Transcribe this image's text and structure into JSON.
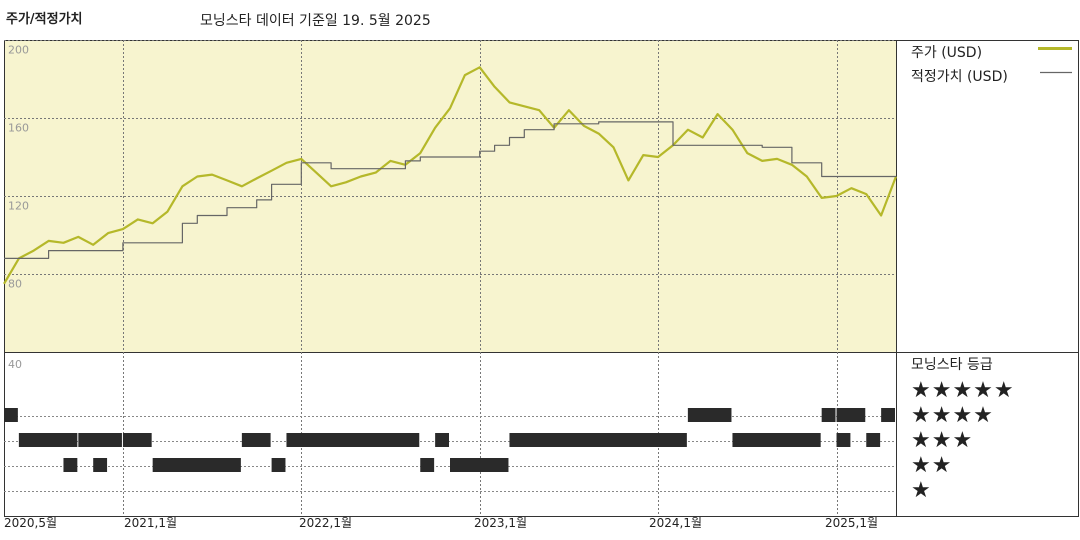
{
  "header": {
    "section_title": "주가/적정가치",
    "source_note": "모닝스타 데이터 기준일 19. 5월 2025"
  },
  "legend": {
    "price_label": "주가 (USD)",
    "fair_value_label": "적정가치 (USD)",
    "rating_title": "모닝스타 등급",
    "price_color": "#b5b82a",
    "fair_value_color": "#666666"
  },
  "rating_rows": [
    "★★★★★",
    "★★★★",
    "★★★",
    "★★",
    "★"
  ],
  "chart_data": {
    "type": "line",
    "x_tick_labels": [
      "2020,5월",
      "2021,1월",
      "2022,1월",
      "2023,1월",
      "2024,1월",
      "2025,1월"
    ],
    "x_ticks": [
      "2020-05",
      "2021-01",
      "2022-01",
      "2023-01",
      "2024-01",
      "2025-01"
    ],
    "x_range": [
      "2020-05",
      "2025-05"
    ],
    "y_tick_labels": [
      "200",
      "160",
      "120",
      "80",
      "40"
    ],
    "ylim": [
      40,
      200
    ],
    "series": [
      {
        "name": "주가 (USD)",
        "color": "#b5b82a",
        "points": [
          [
            "2020-05",
            75
          ],
          [
            "2020-06",
            88
          ],
          [
            "2020-07",
            92
          ],
          [
            "2020-08",
            97
          ],
          [
            "2020-09",
            96
          ],
          [
            "2020-10",
            99
          ],
          [
            "2020-11",
            95
          ],
          [
            "2020-12",
            101
          ],
          [
            "2021-01",
            103
          ],
          [
            "2021-02",
            108
          ],
          [
            "2021-03",
            106
          ],
          [
            "2021-04",
            112
          ],
          [
            "2021-05",
            125
          ],
          [
            "2021-06",
            130
          ],
          [
            "2021-07",
            131
          ],
          [
            "2021-08",
            128
          ],
          [
            "2021-09",
            125
          ],
          [
            "2021-10",
            129
          ],
          [
            "2021-11",
            133
          ],
          [
            "2021-12",
            137
          ],
          [
            "2022-01",
            139
          ],
          [
            "2022-02",
            132
          ],
          [
            "2022-03",
            125
          ],
          [
            "2022-04",
            127
          ],
          [
            "2022-05",
            130
          ],
          [
            "2022-06",
            132
          ],
          [
            "2022-07",
            138
          ],
          [
            "2022-08",
            136
          ],
          [
            "2022-09",
            142
          ],
          [
            "2022-10",
            155
          ],
          [
            "2022-11",
            165
          ],
          [
            "2022-12",
            182
          ],
          [
            "2023-01",
            186
          ],
          [
            "2023-02",
            176
          ],
          [
            "2023-03",
            168
          ],
          [
            "2023-04",
            166
          ],
          [
            "2023-05",
            164
          ],
          [
            "2023-06",
            155
          ],
          [
            "2023-07",
            164
          ],
          [
            "2023-08",
            156
          ],
          [
            "2023-09",
            152
          ],
          [
            "2023-10",
            145
          ],
          [
            "2023-11",
            128
          ],
          [
            "2023-12",
            141
          ],
          [
            "2024-01",
            140
          ],
          [
            "2024-02",
            146
          ],
          [
            "2024-03",
            154
          ],
          [
            "2024-04",
            150
          ],
          [
            "2024-05",
            162
          ],
          [
            "2024-06",
            154
          ],
          [
            "2024-07",
            142
          ],
          [
            "2024-08",
            138
          ],
          [
            "2024-09",
            139
          ],
          [
            "2024-10",
            136
          ],
          [
            "2024-11",
            130
          ],
          [
            "2024-12",
            119
          ],
          [
            "2025-01",
            120
          ],
          [
            "2025-02",
            124
          ],
          [
            "2025-03",
            121
          ],
          [
            "2025-04",
            110
          ],
          [
            "2025-05",
            130
          ]
        ]
      },
      {
        "name": "적정가치 (USD)",
        "color": "#666666",
        "points": [
          [
            "2020-05",
            88
          ],
          [
            "2020-06",
            88
          ],
          [
            "2020-07",
            88
          ],
          [
            "2020-08",
            92
          ],
          [
            "2020-09",
            92
          ],
          [
            "2020-10",
            92
          ],
          [
            "2020-11",
            92
          ],
          [
            "2020-12",
            92
          ],
          [
            "2021-01",
            96
          ],
          [
            "2021-02",
            96
          ],
          [
            "2021-03",
            96
          ],
          [
            "2021-04",
            96
          ],
          [
            "2021-05",
            106
          ],
          [
            "2021-06",
            110
          ],
          [
            "2021-07",
            110
          ],
          [
            "2021-08",
            114
          ],
          [
            "2021-09",
            114
          ],
          [
            "2021-10",
            118
          ],
          [
            "2021-11",
            126
          ],
          [
            "2021-12",
            126
          ],
          [
            "2022-01",
            137
          ],
          [
            "2022-02",
            137
          ],
          [
            "2022-03",
            134
          ],
          [
            "2022-04",
            134
          ],
          [
            "2022-05",
            134
          ],
          [
            "2022-06",
            134
          ],
          [
            "2022-07",
            134
          ],
          [
            "2022-08",
            138
          ],
          [
            "2022-09",
            140
          ],
          [
            "2022-10",
            140
          ],
          [
            "2022-11",
            140
          ],
          [
            "2022-12",
            140
          ],
          [
            "2023-01",
            143
          ],
          [
            "2023-02",
            146
          ],
          [
            "2023-03",
            150
          ],
          [
            "2023-04",
            154
          ],
          [
            "2023-05",
            154
          ],
          [
            "2023-06",
            157
          ],
          [
            "2023-07",
            157
          ],
          [
            "2023-08",
            157
          ],
          [
            "2023-09",
            158
          ],
          [
            "2023-10",
            158
          ],
          [
            "2023-11",
            158
          ],
          [
            "2023-12",
            158
          ],
          [
            "2024-01",
            158
          ],
          [
            "2024-02",
            146
          ],
          [
            "2024-03",
            146
          ],
          [
            "2024-04",
            146
          ],
          [
            "2024-05",
            146
          ],
          [
            "2024-06",
            146
          ],
          [
            "2024-07",
            146
          ],
          [
            "2024-08",
            145
          ],
          [
            "2024-09",
            145
          ],
          [
            "2024-10",
            137
          ],
          [
            "2024-11",
            137
          ],
          [
            "2024-12",
            130
          ],
          [
            "2025-01",
            130
          ],
          [
            "2025-02",
            130
          ],
          [
            "2025-03",
            130
          ],
          [
            "2025-04",
            130
          ],
          [
            "2025-05",
            130
          ]
        ]
      }
    ],
    "rating_history": [
      {
        "stars": 5,
        "periods": [
          [
            "2020-05",
            "2020-06"
          ],
          [
            "2024-03",
            "2024-06"
          ],
          [
            "2024-12",
            "2025-01"
          ],
          [
            "2025-01",
            "2025-03"
          ],
          [
            "2025-04",
            "2025-05"
          ]
        ]
      },
      {
        "stars": 4,
        "periods": [
          [
            "2020-06",
            "2020-10"
          ],
          [
            "2020-10",
            "2021-01"
          ],
          [
            "2021-01",
            "2021-03"
          ],
          [
            "2021-09",
            "2021-11"
          ],
          [
            "2021-12",
            "2022-09"
          ],
          [
            "2022-10",
            "2022-11"
          ],
          [
            "2023-03",
            "2024-03"
          ],
          [
            "2024-06",
            "2024-12"
          ],
          [
            "2025-01",
            "2025-02"
          ],
          [
            "2025-03",
            "2025-04"
          ]
        ]
      },
      {
        "stars": 3,
        "periods": [
          [
            "2020-09",
            "2020-10"
          ],
          [
            "2020-11",
            "2020-12"
          ],
          [
            "2021-03",
            "2021-09"
          ],
          [
            "2021-11",
            "2021-12"
          ],
          [
            "2022-09",
            "2022-10"
          ],
          [
            "2022-11",
            "2023-03"
          ]
        ]
      },
      {
        "stars": 2,
        "periods": []
      },
      {
        "stars": 1,
        "periods": []
      }
    ]
  }
}
